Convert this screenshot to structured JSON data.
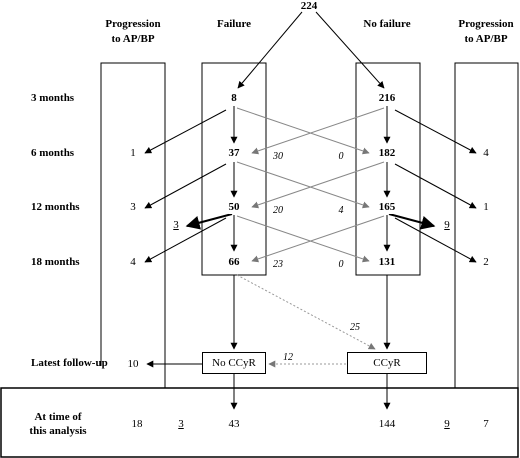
{
  "total": "224",
  "headers": {
    "progression_left": [
      "Progression",
      "to AP/BP"
    ],
    "failure": "Failure",
    "no_failure": "No failure",
    "progression_right": [
      "Progression",
      "to AP/BP"
    ]
  },
  "rows": {
    "m3": "3 months",
    "m6": "6 months",
    "m12": "12 months",
    "m18": "18 months",
    "latest": "Latest follow-up",
    "analysis": [
      "At time of",
      "this analysis"
    ]
  },
  "failure_counts": {
    "m3": "8",
    "m6": "37",
    "m12": "50",
    "m18": "66"
  },
  "no_failure_counts": {
    "m3": "216",
    "m6": "182",
    "m12": "165",
    "m18": "131"
  },
  "progression_left": {
    "m6": "1",
    "m12": "3",
    "m18": "4",
    "latest": "10"
  },
  "progression_right": {
    "m6": "4",
    "m12": "1",
    "m18": "2"
  },
  "crossovers": {
    "m6_to_failure": "30",
    "m6_to_no_failure": "0",
    "m12_to_failure": "20",
    "m12_to_no_failure": "4",
    "m18_to_failure": "23",
    "m18_to_no_failure": "0",
    "to_ccyr": "25",
    "ccyr_to_no_ccyr": "12"
  },
  "side_exits": {
    "failure": "3",
    "no_failure": "9"
  },
  "latest_boxes": {
    "no_ccyr": "No CCyR",
    "ccyr": "CCyR"
  },
  "analysis_values": {
    "prog_left": "18",
    "fail_exit": "3",
    "no_ccyr": "43",
    "ccyr": "144",
    "nofail_exit": "9",
    "prog_right": "7"
  }
}
